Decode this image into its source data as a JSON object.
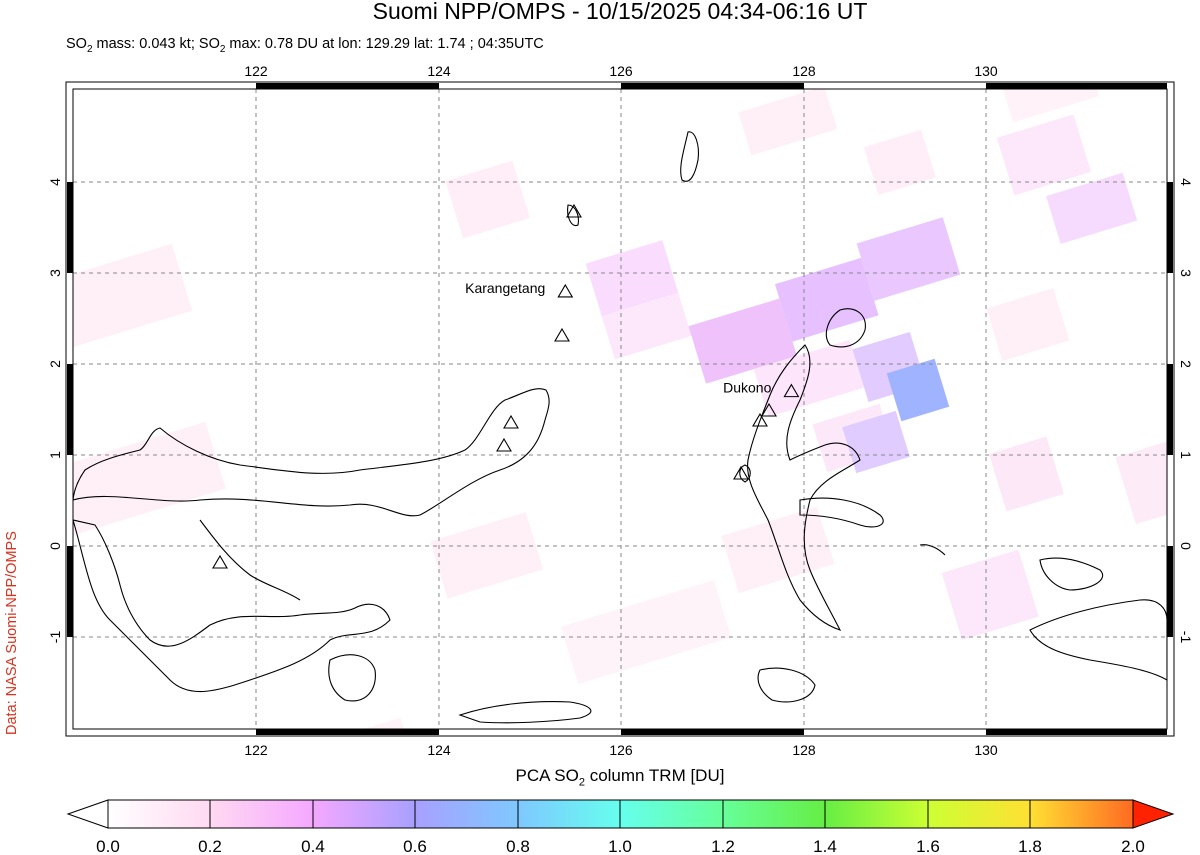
{
  "header": {
    "title": "Suomi NPP/OMPS - 10/15/2025 04:34-06:16 UT",
    "subtitle_parts": {
      "a": "SO",
      "sub1": "2",
      "b": " mass: 0.043 kt; SO",
      "sub2": "2",
      "c": " max: 0.78 DU at lon: 129.29 lat: 1.74 ; 04:35UTC"
    }
  },
  "credit": "Data: NASA Suomi-NPP/OMPS",
  "map": {
    "lon_range": [
      120,
      132
    ],
    "lat_range": [
      -2,
      5
    ],
    "lon_ticks": [
      "122",
      "124",
      "126",
      "128",
      "130"
    ],
    "lat_ticks": [
      "-1",
      "0",
      "1",
      "2",
      "3",
      "4"
    ],
    "volcanoes": [
      {
        "name": "Karangetang",
        "lon": 125.4,
        "lat": 2.78,
        "label": "Karangetang"
      },
      {
        "name": "Dukono",
        "lon": 127.88,
        "lat": 1.69,
        "label": "Dukono"
      }
    ]
  },
  "colorbar": {
    "title_a": "PCA SO",
    "title_sub": "2",
    "title_b": " column TRM [DU]",
    "ticks": [
      "0.0",
      "0.2",
      "0.4",
      "0.6",
      "0.8",
      "1.0",
      "1.2",
      "1.4",
      "1.6",
      "1.8",
      "2.0"
    ],
    "range": [
      0,
      2
    ],
    "colors": [
      "#ffffff",
      "#ffd9f2",
      "#f4a8ff",
      "#a8a0ff",
      "#7fc8ff",
      "#66ffee",
      "#66ff99",
      "#66ee44",
      "#ccff33",
      "#ffe033",
      "#ff9922",
      "#ff2200"
    ]
  }
}
